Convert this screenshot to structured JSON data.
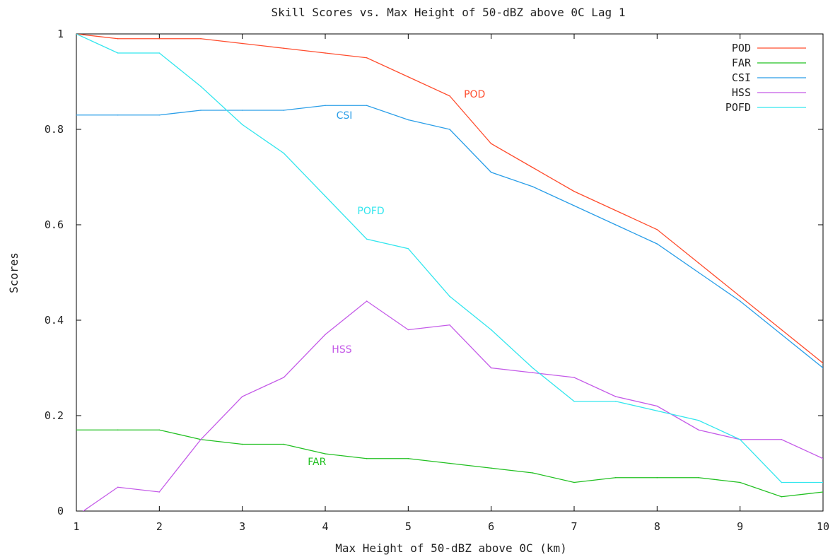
{
  "chart_data": {
    "type": "line",
    "title": "Skill Scores vs. Max Height of 50-dBZ above 0C Lag 1",
    "xlabel": "Max Height of 50-dBZ above 0C (km)",
    "ylabel": "Scores",
    "xlim": [
      1,
      10
    ],
    "ylim": [
      0,
      1
    ],
    "xticks": [
      1,
      2,
      3,
      4,
      5,
      6,
      7,
      8,
      9,
      10
    ],
    "xtick_labels": [
      "1",
      "2",
      "3",
      "4",
      "5",
      "6",
      "7",
      "8",
      "9",
      "10"
    ],
    "yticks": [
      0,
      0.2,
      0.4,
      0.6,
      0.8,
      1
    ],
    "ytick_labels": [
      "0",
      "0.2",
      "0.4",
      "0.6",
      "0.8",
      "1"
    ],
    "grid": false,
    "legend_position": "top-right",
    "x": [
      1,
      1.5,
      2,
      2.5,
      3,
      3.5,
      4,
      4.5,
      5,
      5.5,
      6,
      6.5,
      7,
      7.5,
      8,
      8.5,
      9,
      9.5,
      10
    ],
    "series": [
      {
        "name": "POD",
        "color": "#ff4d2e",
        "values": [
          1.0,
          0.99,
          0.99,
          0.99,
          0.98,
          0.97,
          0.96,
          0.95,
          0.91,
          0.87,
          0.77,
          0.72,
          0.67,
          0.63,
          0.59,
          0.52,
          0.45,
          0.38,
          0.31
        ]
      },
      {
        "name": "FAR",
        "color": "#22c022",
        "values": [
          0.17,
          0.17,
          0.17,
          0.15,
          0.14,
          0.14,
          0.12,
          0.11,
          0.11,
          0.1,
          0.09,
          0.08,
          0.06,
          0.07,
          0.07,
          0.07,
          0.06,
          0.03,
          0.04
        ]
      },
      {
        "name": "CSI",
        "color": "#2a9ee8",
        "values": [
          0.83,
          0.83,
          0.83,
          0.84,
          0.84,
          0.84,
          0.85,
          0.85,
          0.82,
          0.8,
          0.71,
          0.68,
          0.64,
          0.6,
          0.56,
          0.5,
          0.44,
          0.37,
          0.3
        ]
      },
      {
        "name": "HSS",
        "color": "#c45ae8",
        "values": [
          -0.01,
          0.05,
          0.04,
          0.15,
          0.24,
          0.28,
          0.37,
          0.44,
          0.38,
          0.39,
          0.3,
          0.29,
          0.28,
          0.24,
          0.22,
          0.17,
          0.15,
          0.15,
          0.11
        ]
      },
      {
        "name": "POFD",
        "color": "#33e6ee",
        "values": [
          1.0,
          0.96,
          0.96,
          0.89,
          0.81,
          0.75,
          0.66,
          0.57,
          0.55,
          0.45,
          0.38,
          0.3,
          0.23,
          0.23,
          0.21,
          0.19,
          0.15,
          0.06,
          0.06
        ]
      }
    ],
    "annotations": [
      {
        "text": "POD",
        "x": 5.8,
        "y": 0.867,
        "color": "#ff4d2e"
      },
      {
        "text": "CSI",
        "x": 4.23,
        "y": 0.822,
        "color": "#2a9ee8"
      },
      {
        "text": "POFD",
        "x": 4.55,
        "y": 0.622,
        "color": "#33e6ee"
      },
      {
        "text": "HSS",
        "x": 4.2,
        "y": 0.332,
        "color": "#c45ae8"
      },
      {
        "text": "FAR",
        "x": 3.9,
        "y": 0.096,
        "color": "#22c022"
      }
    ]
  }
}
